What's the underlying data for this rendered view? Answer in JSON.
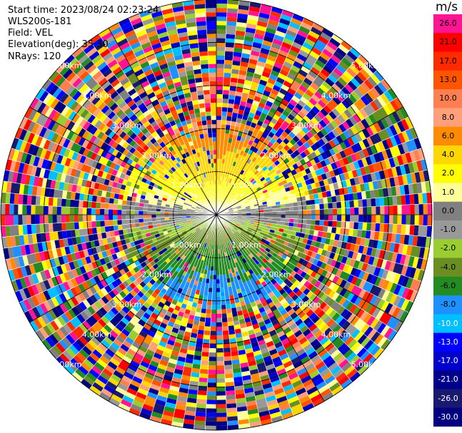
{
  "chart_data": {
    "type": "heatmap",
    "info": {
      "start_time": "Start time: 2023/08/24 02:23:24",
      "site": "WLS200s-181",
      "field": "Field: VEL",
      "elevation": "Elevation(deg): 35.30",
      "nrays": "NRays: 120"
    },
    "colorbar": {
      "unit": "m/s",
      "ticks": [
        "26.0",
        "21.0",
        "17.0",
        "13.0",
        "10.0",
        "8.0",
        "6.0",
        "4.0",
        "2.0",
        "1.0",
        "0.0",
        "-1.0",
        "-2.0",
        "-4.0",
        "-6.0",
        "-8.0",
        "-10.0",
        "-13.0",
        "-17.0",
        "-21.0",
        "-26.0",
        "-30.0"
      ],
      "colors": [
        "#ff1493",
        "#ff0000",
        "#ff2a00",
        "#ff5500",
        "#ff7f50",
        "#ffa07a",
        "#ff8c00",
        "#ffd700",
        "#ffff00",
        "#ffff99",
        "#808080",
        "#999999",
        "#9acd32",
        "#6b8e23",
        "#228b22",
        "#1e90ff",
        "#00bfff",
        "#0000ff",
        "#0000cd",
        "#00008b",
        "#191970",
        "#000080"
      ]
    },
    "range_labels": [
      "1.00km",
      "2.00km",
      "3.00km",
      "4.00km",
      "5.00km"
    ],
    "range_rings_km": [
      1,
      2,
      3,
      4,
      5
    ],
    "max_range_km": 5,
    "n_rays": 120,
    "valid_range_km": 2.2
  }
}
